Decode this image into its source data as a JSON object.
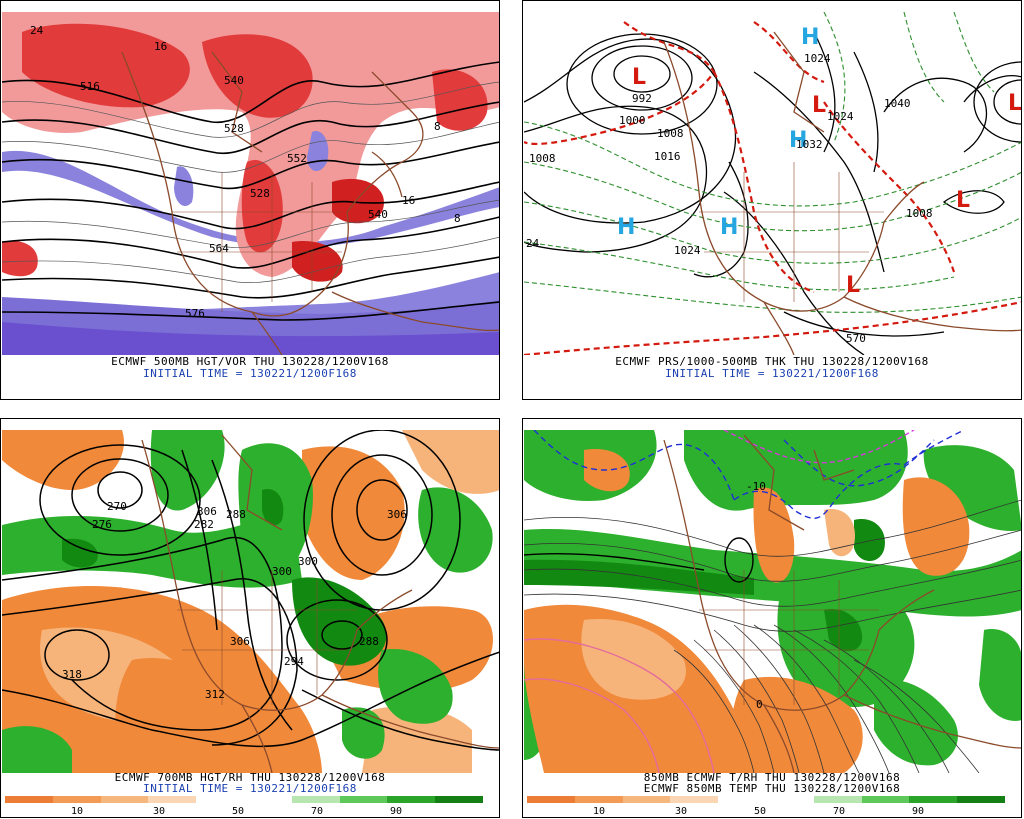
{
  "panels": {
    "tl": {
      "title": "ECMWF 500MB HGT/VOR THU 130228/1200V168",
      "subtitle": "INITIAL TIME = 130221/1200F168",
      "contour_labels": [
        "24",
        "516",
        "540",
        "528",
        "552",
        "528",
        "564",
        "576",
        "16",
        "8",
        "8",
        "16",
        "540"
      ]
    },
    "tr": {
      "title": "ECMWF PRS/1000-500MB THK THU 130228/1200V168",
      "subtitle": "INITIAL TIME = 130221/1200F168",
      "contour_labels": [
        "992",
        "1000",
        "1008",
        "1016",
        "1008",
        "1024",
        "1032",
        "1024",
        "1040",
        "1024",
        "570",
        "1008",
        "24"
      ],
      "centers": [
        "L",
        "L",
        "L",
        "L",
        "L",
        "H",
        "H",
        "H",
        "H"
      ]
    },
    "bl": {
      "title": "ECMWF 700MB HGT/RH THU 130228/1200V168",
      "subtitle": "INITIAL TIME = 130221/1200F168",
      "contour_labels": [
        "270",
        "276",
        "282",
        "288",
        "294",
        "300",
        "306",
        "300",
        "318",
        "312",
        "306",
        "294",
        "288",
        "306"
      ],
      "colorbar_ticks": [
        "10",
        "30",
        "50",
        "70",
        "90"
      ]
    },
    "br": {
      "title": "850MB ECMWF T/RH THU 130228/1200V168",
      "subtitle": "ECMWF 850MB TEMP THU 130228/1200V168",
      "contour_labels": [
        "-10",
        "0"
      ],
      "colorbar_ticks": [
        "10",
        "30",
        "50",
        "70",
        "90"
      ]
    }
  },
  "colors": {
    "vort_red": "#e23b3b",
    "vort_pink": "#f08a8a",
    "vort_blue": "#7b6fd6",
    "rh_brown": "#f0893a",
    "rh_light_brown": "#f6b47a",
    "rh_green": "#2db02d",
    "rh_dark_green": "#128a12",
    "caption_blue": "#1a3fb0",
    "low_red": "#d41a0f",
    "high_blue": "#25a6e0"
  },
  "colorbar": [
    "#ec7d36",
    "#f39a55",
    "#f6b77e",
    "#fad6b4",
    "#ffffff",
    "#ffffff",
    "#b8e6b0",
    "#5fc85a",
    "#2aa52a",
    "#147f14"
  ]
}
